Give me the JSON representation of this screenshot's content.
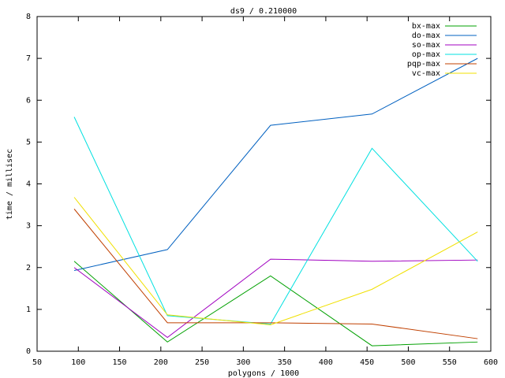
{
  "chart_data": {
    "type": "line",
    "title": "ds9 / 0.210000",
    "x_label": "polygons / 1000",
    "y_label": "time / millisec",
    "x": [
      95,
      208,
      333,
      456,
      584
    ],
    "series": [
      {
        "name": "bx-max",
        "color": "#00a000",
        "values": [
          2.15,
          0.22,
          1.8,
          0.13,
          0.22
        ]
      },
      {
        "name": "do-max",
        "color": "#0060c0",
        "values": [
          1.93,
          2.43,
          5.4,
          5.67,
          7.0
        ]
      },
      {
        "name": "so-max",
        "color": "#a000c0",
        "values": [
          2.0,
          0.33,
          2.2,
          2.15,
          2.18
        ]
      },
      {
        "name": "op-max",
        "color": "#00e0e0",
        "values": [
          5.6,
          0.85,
          0.65,
          4.85,
          2.15
        ]
      },
      {
        "name": "pqp-max",
        "color": "#c04000",
        "values": [
          3.4,
          0.68,
          0.68,
          0.65,
          0.3
        ]
      },
      {
        "name": "vc-max",
        "color": "#f0e000",
        "values": [
          3.68,
          0.87,
          0.63,
          1.48,
          2.85
        ]
      }
    ],
    "xlim": [
      50,
      600
    ],
    "xticks": [
      50,
      100,
      150,
      200,
      250,
      300,
      350,
      400,
      450,
      500,
      550,
      600
    ],
    "ylim": [
      0,
      8
    ],
    "yticks": [
      0,
      1,
      2,
      3,
      4,
      5,
      6,
      7,
      8
    ],
    "grid": false,
    "legend": "top-right"
  }
}
